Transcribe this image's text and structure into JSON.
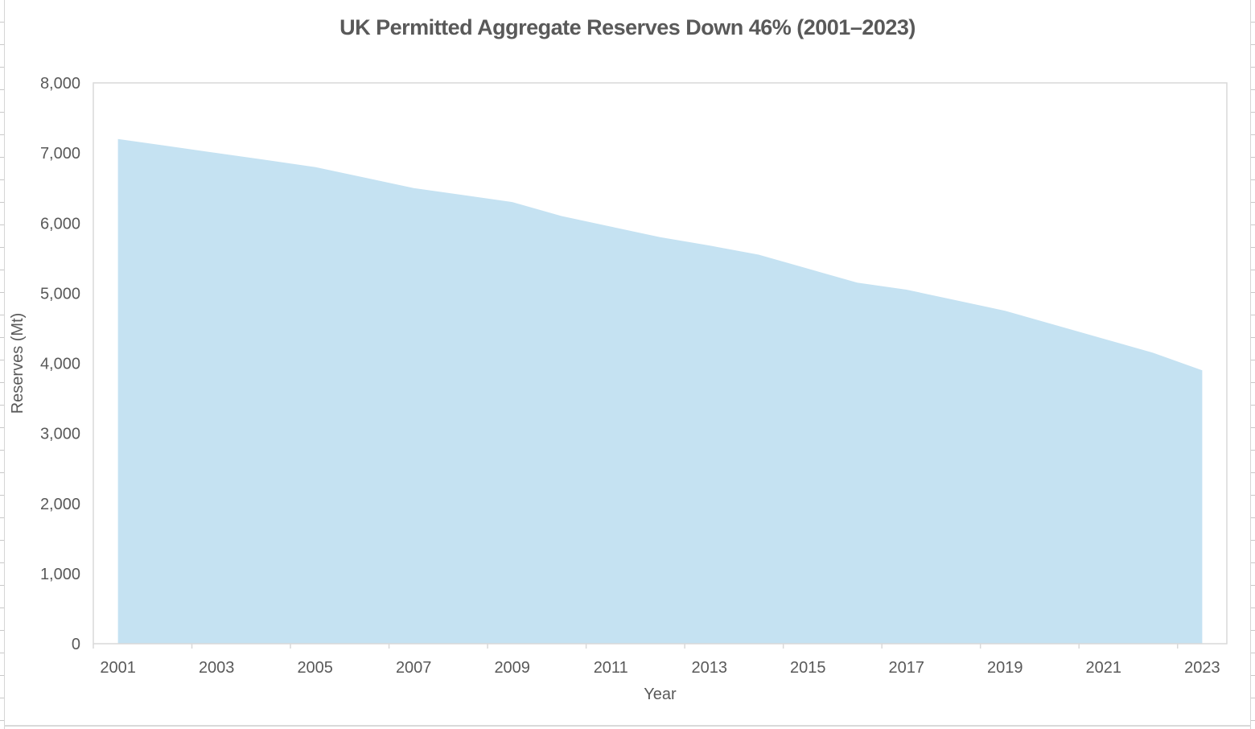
{
  "chart_data": {
    "type": "area",
    "title": "UK Permitted Aggregate Reserves Down 46% (2001–2023)",
    "xlabel": "Year",
    "ylabel": "Reserves (Mt)",
    "x": [
      2001,
      2002,
      2003,
      2004,
      2005,
      2006,
      2007,
      2008,
      2009,
      2010,
      2011,
      2012,
      2013,
      2014,
      2015,
      2016,
      2017,
      2018,
      2019,
      2020,
      2021,
      2022,
      2023
    ],
    "values": [
      7200,
      7100,
      7000,
      6900,
      6800,
      6650,
      6500,
      6400,
      6300,
      6100,
      5950,
      5800,
      5680,
      5550,
      5350,
      5150,
      5050,
      4900,
      4750,
      4550,
      4350,
      4150,
      3900
    ],
    "ylim": [
      0,
      8000
    ],
    "ytick_interval": 1000,
    "ytick_labels": [
      "0",
      "1,000",
      "2,000",
      "3,000",
      "4,000",
      "5,000",
      "6,000",
      "7,000",
      "8,000"
    ],
    "xtick_labels": [
      "2001",
      "2003",
      "2005",
      "2007",
      "2009",
      "2011",
      "2013",
      "2015",
      "2017",
      "2019",
      "2021",
      "2023"
    ],
    "xtick_label_interval": 2,
    "grid": false,
    "legend": "none",
    "colors": {
      "area_fill": "#c5e2f2",
      "plot_border": "#d9d9d9",
      "tick_mark": "#d9d9d9",
      "axis_text": "#595959",
      "title_text": "#595959",
      "sheet_line": "#d6d6d6",
      "background": "#ffffff"
    }
  }
}
